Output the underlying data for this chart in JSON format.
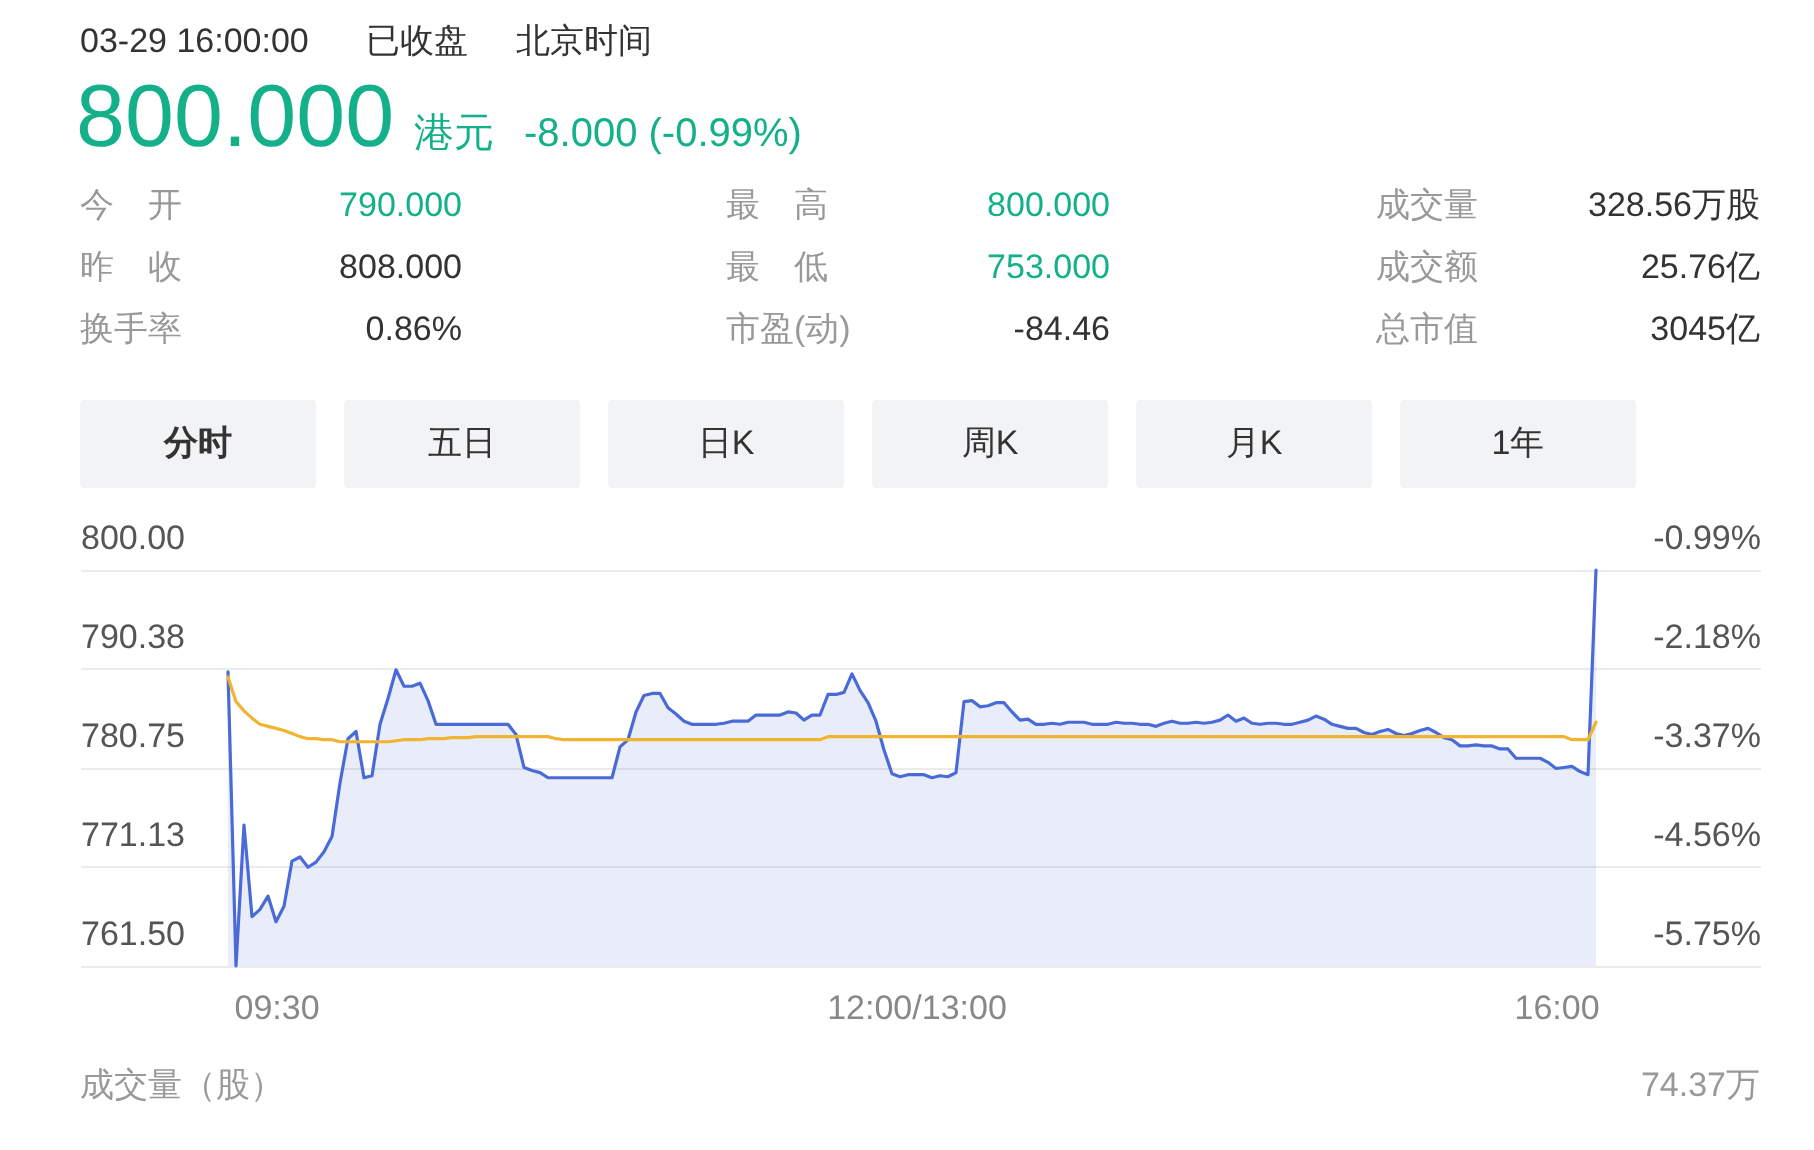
{
  "chart_data": [
    {
      "type": "other",
      "annotations": [
        "03-29 16:00:00",
        "已收盘",
        "北京时间",
        "800.000",
        "港元",
        "-8.000 (-0.99%)",
        "今　开",
        "790.000",
        "最　高",
        "800.000",
        "成交量",
        "328.56万股",
        "昨　收",
        "808.000",
        "最　低",
        "753.000",
        "成交额",
        "25.76亿",
        "换手率",
        "0.86%",
        "市盈(动)",
        "-84.46",
        "总市值",
        "3045亿",
        "分时",
        "五日",
        "日K",
        "周K",
        "月K",
        "1年"
      ]
    },
    {
      "type": "line",
      "categories": [
        null,
        null,
        null,
        null,
        null,
        null,
        "09:30",
        null,
        null,
        null,
        null,
        null,
        null,
        null,
        null,
        null,
        null,
        null,
        null,
        null,
        null,
        null,
        null,
        null,
        null,
        null,
        null,
        null,
        null,
        null,
        null,
        null,
        null,
        null,
        null,
        null,
        null,
        null,
        null,
        null,
        null,
        null,
        null,
        null,
        null,
        null,
        null,
        null,
        null,
        null,
        null,
        null,
        null,
        null,
        null,
        null,
        null,
        null,
        null,
        null,
        null,
        null,
        null,
        null,
        null,
        null,
        null,
        null,
        null,
        null,
        null,
        null,
        null,
        null,
        null,
        null,
        null,
        null,
        null,
        null,
        null,
        null,
        null,
        null,
        null,
        null,
        "12:00/13:00",
        null,
        null,
        null,
        null,
        null,
        null,
        null,
        null,
        null,
        null,
        null,
        null,
        null,
        null,
        null,
        null,
        null,
        null,
        null,
        null,
        null,
        null,
        null,
        null,
        null,
        null,
        null,
        null,
        null,
        null,
        null,
        null,
        null,
        null,
        null,
        null,
        null,
        null,
        null,
        null,
        null,
        null,
        null,
        null,
        null,
        null,
        null,
        null,
        null,
        null,
        null,
        null,
        null,
        null,
        null,
        null,
        null,
        null,
        null,
        null,
        null,
        null,
        null,
        null,
        null,
        null,
        null,
        null,
        null,
        null,
        null,
        null,
        null,
        null,
        null,
        null,
        null,
        null,
        null,
        "16:00",
        null,
        null,
        null,
        null,
        null
      ],
      "series": [
        {
          "type": "area",
          "color": "#4a6ad8",
          "values": [
            790.1,
            761.5,
            775.2,
            766.3,
            767.0,
            768.3,
            765.8,
            767.3,
            771.7,
            772.1,
            771.1,
            771.6,
            772.6,
            774.1,
            779.3,
            783.6,
            784.3,
            779.8,
            780.0,
            785.0,
            787.5,
            790.3,
            788.7,
            788.7,
            789.0,
            787.3,
            785.0,
            785.0,
            785.0,
            785.0,
            785.0,
            785.0,
            785.0,
            785.0,
            785.0,
            785.0,
            784.0,
            780.8,
            780.5,
            780.3,
            779.8,
            779.8,
            779.8,
            779.8,
            779.8,
            779.8,
            779.8,
            779.8,
            779.8,
            782.8,
            783.5,
            786.2,
            787.8,
            788.0,
            788.0,
            786.6,
            786.0,
            785.3,
            785.0,
            785.0,
            785.0,
            785.0,
            785.1,
            785.3,
            785.3,
            785.3,
            785.9,
            785.9,
            785.9,
            785.9,
            786.2,
            786.1,
            785.4,
            785.9,
            785.9,
            787.9,
            787.9,
            788.1,
            789.9,
            788.3,
            787.1,
            785.3,
            782.5,
            780.2,
            779.9,
            780.1,
            780.1,
            780.1,
            779.8,
            780.0,
            779.9,
            780.3,
            787.2,
            787.3,
            786.7,
            786.8,
            787.1,
            787.1,
            786.2,
            785.4,
            785.5,
            785.0,
            785.0,
            785.1,
            785.0,
            785.2,
            785.2,
            785.2,
            785.0,
            785.0,
            785.0,
            785.2,
            785.1,
            785.1,
            785.0,
            785.0,
            784.8,
            785.1,
            785.3,
            785.1,
            785.1,
            785.2,
            785.1,
            785.2,
            785.4,
            785.9,
            785.3,
            785.6,
            785.1,
            785.0,
            785.1,
            785.1,
            785.0,
            785.0,
            785.2,
            785.4,
            785.8,
            785.5,
            785.0,
            784.8,
            784.6,
            784.6,
            784.2,
            784.0,
            784.3,
            784.5,
            784.1,
            783.9,
            784.1,
            784.4,
            784.6,
            784.2,
            783.7,
            783.5,
            782.9,
            782.9,
            783.0,
            782.9,
            782.9,
            782.6,
            782.6,
            781.7,
            781.7,
            781.7,
            781.7,
            781.3,
            780.7,
            780.8,
            780.9,
            780.4,
            780.1,
            800.0
          ]
        },
        {
          "color": "#f0b432",
          "values": [
            789.6,
            787.2,
            786.3,
            785.6,
            785.0,
            784.8,
            784.6,
            784.4,
            784.1,
            783.8,
            783.6,
            783.6,
            783.5,
            783.5,
            783.3,
            783.3,
            783.3,
            783.3,
            783.3,
            783.3,
            783.3,
            783.4,
            783.5,
            783.5,
            783.5,
            783.6,
            783.6,
            783.6,
            783.7,
            783.7,
            783.7,
            783.8,
            783.8,
            783.8,
            783.8,
            783.8,
            783.8,
            783.8,
            783.8,
            783.8,
            783.8,
            783.6,
            783.5,
            783.5,
            783.5,
            783.5,
            783.5,
            783.5,
            783.5,
            783.5,
            783.5,
            783.5,
            783.5,
            783.5,
            783.5,
            783.5,
            783.5,
            783.5,
            783.5,
            783.5,
            783.5,
            783.5,
            783.5,
            783.5,
            783.5,
            783.5,
            783.5,
            783.5,
            783.5,
            783.5,
            783.5,
            783.5,
            783.5,
            783.5,
            783.5,
            783.8,
            783.8,
            783.8,
            783.8,
            783.8,
            783.8,
            783.8,
            783.8,
            783.8,
            783.8,
            783.8,
            783.8,
            783.8,
            783.8,
            783.8,
            783.8,
            783.8,
            783.8,
            783.8,
            783.8,
            783.8,
            783.8,
            783.8,
            783.8,
            783.8,
            783.8,
            783.8,
            783.8,
            783.8,
            783.8,
            783.8,
            783.8,
            783.8,
            783.8,
            783.8,
            783.8,
            783.8,
            783.8,
            783.8,
            783.8,
            783.8,
            783.8,
            783.8,
            783.8,
            783.8,
            783.8,
            783.8,
            783.8,
            783.8,
            783.8,
            783.8,
            783.8,
            783.8,
            783.8,
            783.8,
            783.8,
            783.8,
            783.8,
            783.8,
            783.8,
            783.8,
            783.8,
            783.8,
            783.8,
            783.8,
            783.8,
            783.8,
            783.8,
            783.8,
            783.8,
            783.8,
            783.8,
            783.8,
            783.8,
            783.8,
            783.8,
            783.8,
            783.8,
            783.8,
            783.8,
            783.8,
            783.8,
            783.8,
            783.8,
            783.8,
            783.8,
            783.8,
            783.8,
            783.8,
            783.8,
            783.8,
            783.8,
            783.8,
            783.5,
            783.5,
            783.5,
            785.2
          ]
        }
      ],
      "ylim": [
        761.5,
        800
      ],
      "yticks": [
        {
          "value": 761.5,
          "label": "761.50"
        },
        771.13,
        780.75,
        790.38,
        {
          "value": 800,
          "label": "800.00"
        }
      ],
      "y2lim": [
        -5.75,
        -0.99
      ],
      "y2ticks": [
        {
          "value": -5.75,
          "label": "-5.75%"
        },
        {
          "value": -4.56,
          "label": "-4.56%"
        },
        {
          "value": -3.37,
          "label": "-3.37%"
        },
        {
          "value": -2.18,
          "label": "-2.18%"
        },
        {
          "value": -0.99,
          "label": "-0.99%"
        }
      ],
      "grid": "y",
      "annotations": [
        "成交量（股）",
        "74.37万"
      ]
    }
  ]
}
